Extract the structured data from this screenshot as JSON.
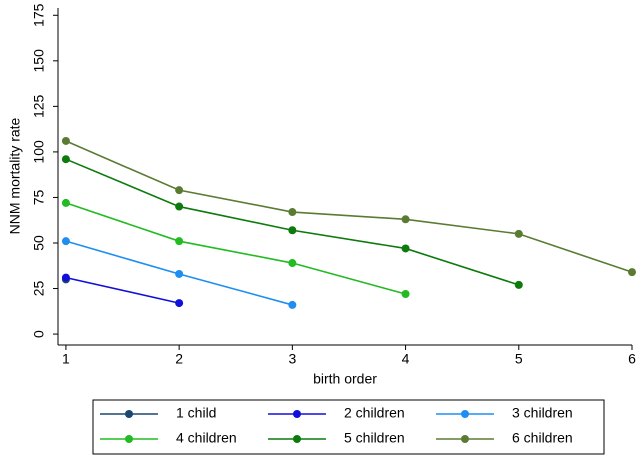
{
  "chart_data": {
    "type": "line",
    "x_label": "birth order",
    "y_label": "NNM mortality rate",
    "x": [
      1,
      2,
      3,
      4,
      5,
      6
    ],
    "series": [
      {
        "name": "1 child",
        "color": "#1a476f",
        "values": [
          30,
          null,
          null,
          null,
          null,
          null
        ]
      },
      {
        "name": "2 children",
        "color": "#1010d8",
        "values": [
          31,
          17,
          null,
          null,
          null,
          null
        ]
      },
      {
        "name": "3 children",
        "color": "#1e8ff0",
        "values": [
          51,
          33,
          16,
          null,
          null,
          null
        ]
      },
      {
        "name": "4 children",
        "color": "#22bb22",
        "values": [
          72,
          51,
          39,
          22,
          null,
          null
        ]
      },
      {
        "name": "5 children",
        "color": "#0c7a0c",
        "values": [
          96,
          70,
          57,
          47,
          27,
          null
        ]
      },
      {
        "name": "6 children",
        "color": "#5b7b33",
        "values": [
          106,
          79,
          67,
          63,
          55,
          34
        ]
      }
    ],
    "xlim": [
      0.93,
      6
    ],
    "xticks": [
      1,
      2,
      3,
      4,
      5,
      6
    ],
    "ylim": [
      -6,
      179
    ],
    "yticks": [
      0,
      25,
      50,
      75,
      100,
      125,
      150,
      175
    ],
    "grid": false,
    "legend": "bottom"
  }
}
